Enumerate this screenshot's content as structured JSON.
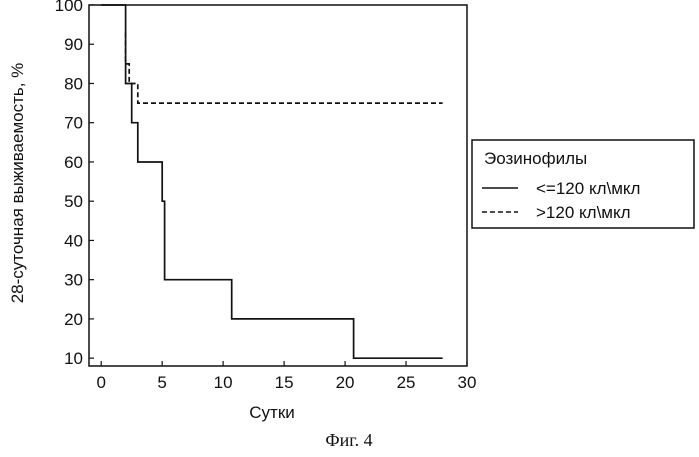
{
  "chart_data": {
    "type": "line",
    "step": true,
    "xlabel": "Сутки",
    "ylabel": "28-суточная выживаемость, %",
    "xlim": [
      -1,
      30
    ],
    "ylim": [
      8,
      100
    ],
    "x_ticks": [
      0,
      5,
      10,
      15,
      20,
      25,
      30
    ],
    "y_ticks": [
      10,
      20,
      30,
      40,
      50,
      60,
      70,
      80,
      90,
      100
    ],
    "grid": false,
    "legend": {
      "title": "Эозинофилы",
      "placement": "right",
      "entries": [
        "<=120 кл\\мкл",
        ">120 кл\\мкл"
      ]
    },
    "series": [
      {
        "name": "<=120 кл\\мкл",
        "style": "solid",
        "x": [
          0,
          2,
          2,
          2.5,
          2.5,
          3,
          3,
          5,
          5,
          5.2,
          5.2,
          10.7,
          10.7,
          20.7,
          20.7,
          28
        ],
        "y": [
          100,
          100,
          80,
          80,
          70,
          70,
          60,
          60,
          50,
          50,
          30,
          30,
          20,
          20,
          10,
          10
        ]
      },
      {
        "name": ">120 кл\\мкл",
        "style": "dashed",
        "x": [
          2,
          2,
          2.3,
          2.3,
          3,
          3,
          28
        ],
        "y": [
          93,
          85,
          85,
          80,
          80,
          75,
          75
        ]
      }
    ]
  },
  "caption": "Фиг. 4"
}
